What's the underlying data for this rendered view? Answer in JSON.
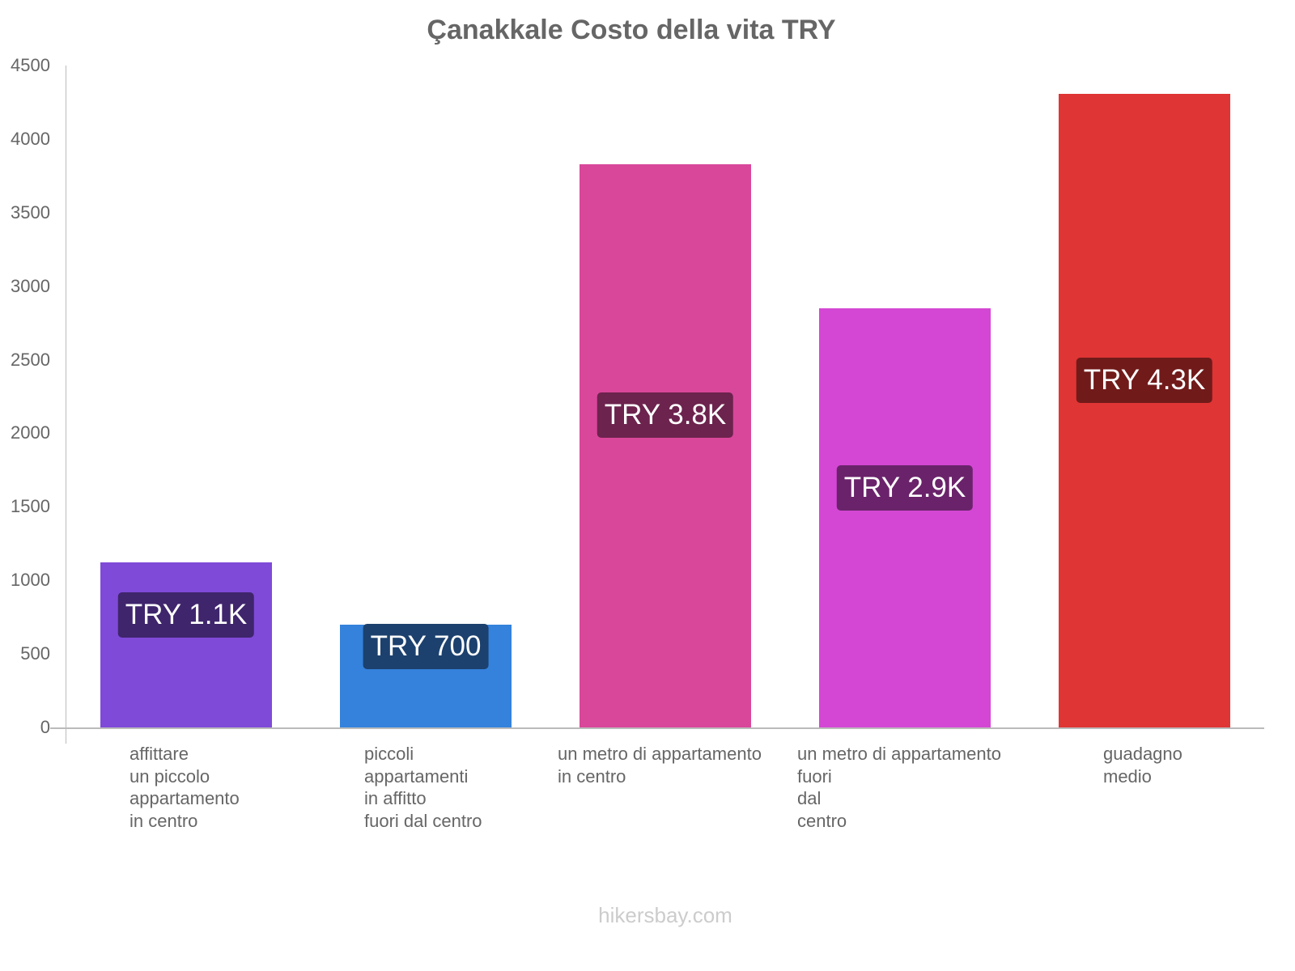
{
  "chart_data": {
    "type": "bar",
    "title": "Çanakkale Costo della vita TRY",
    "xlabel": "",
    "ylabel": "",
    "ylim": [
      0,
      4500
    ],
    "yticks": [
      0,
      500,
      1000,
      1500,
      2000,
      2500,
      3000,
      3500,
      4000,
      4500
    ],
    "grid": false,
    "categories": [
      "affittare un piccolo appartamento in centro",
      "piccoli appartamenti in affitto fuori dal centro",
      "un metro di appartamento in centro",
      "un metro di appartamento fuori dal centro",
      "guadagno medio"
    ],
    "values": [
      1120,
      700,
      3830,
      2850,
      4310
    ],
    "data_labels": [
      "TRY 1.1K",
      "TRY 700",
      "TRY 3.8K",
      "TRY 2.9K",
      "TRY 4.3K"
    ],
    "colors": [
      "#7f4ad8",
      "#3482dc",
      "#d9479b",
      "#d447d4",
      "#e03535"
    ],
    "label_colors": [
      "#3f256c",
      "#1c416e",
      "#6c234d",
      "#6a236a",
      "#711a1a"
    ]
  },
  "ui": {
    "title": "Çanakkale Costo della vita TRY",
    "yticks": [
      "0",
      "500",
      "1000",
      "1500",
      "2000",
      "2500",
      "3000",
      "3500",
      "4000",
      "4500"
    ],
    "xlabels": [
      "affittare\nun piccolo\nappartamento\nin centro",
      "piccoli\nappartamenti\nin affitto\nfuori dal centro",
      "un metro di appartamento\nin centro",
      "un metro di appartamento\nfuori\ndal\ncentro",
      "guadagno\nmedio"
    ],
    "bar_labels": [
      "TRY 1.1K",
      "TRY 700",
      "TRY 3.8K",
      "TRY 2.9K",
      "TRY 4.3K"
    ],
    "footer": "hikersbay.com"
  }
}
